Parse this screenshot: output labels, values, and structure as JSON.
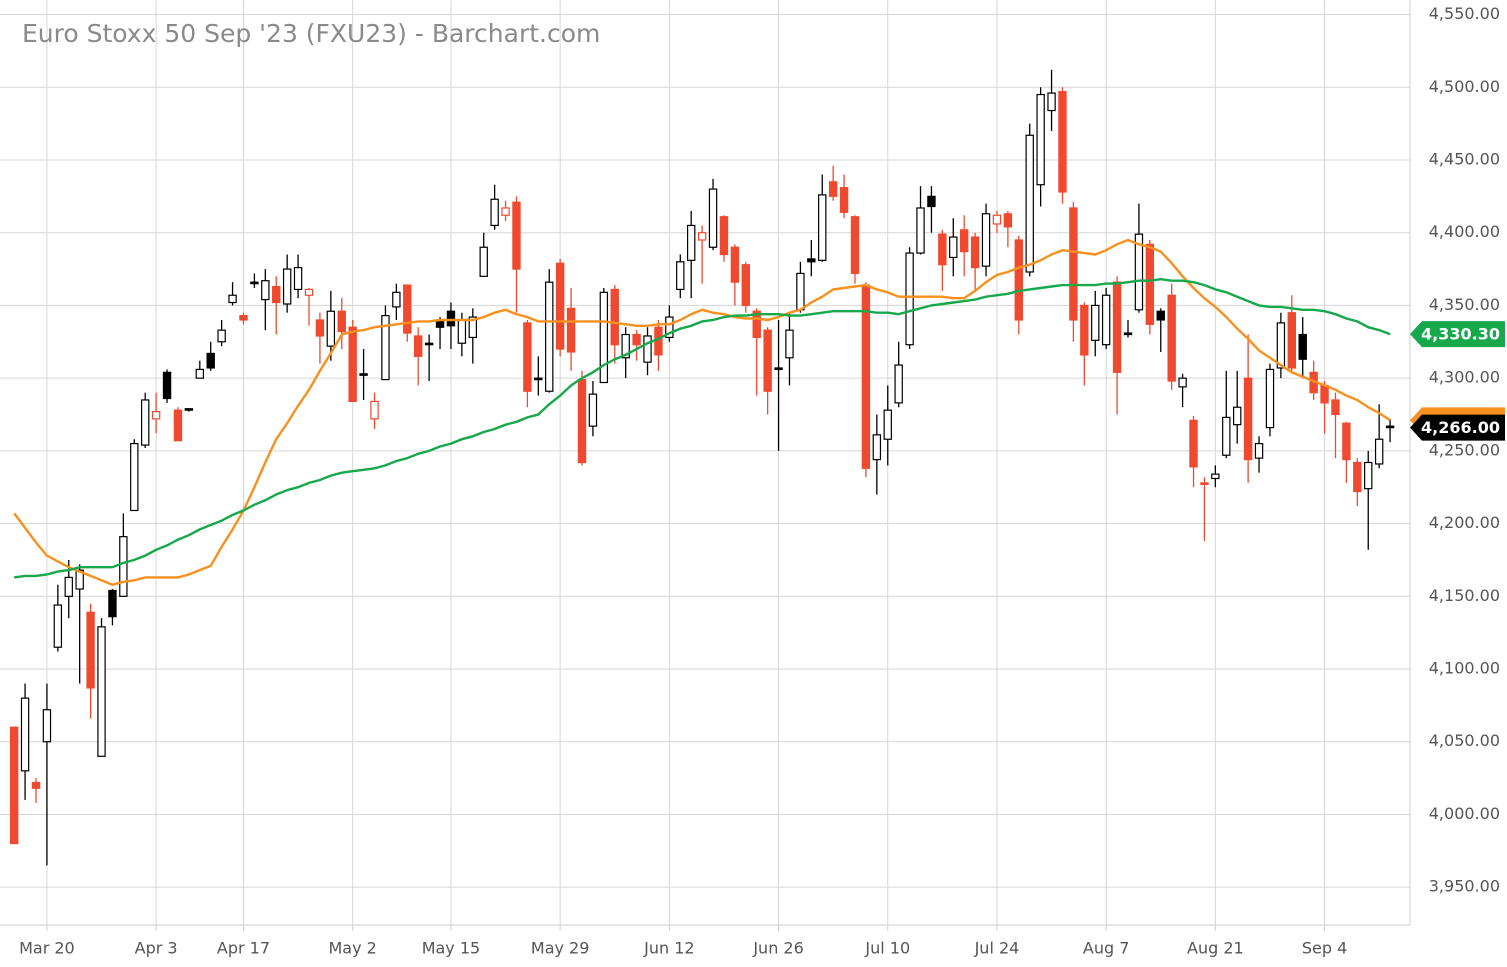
{
  "chart_data": {
    "type": "candlestick",
    "title": "Euro Stoxx 50 Sep '23 (FXU23) - Barchart.com",
    "categories": [
      null,
      null,
      null,
      "Mar 20",
      null,
      null,
      null,
      null,
      null,
      null,
      null,
      null,
      null,
      "Apr 3",
      null,
      null,
      null,
      null,
      null,
      null,
      null,
      "Apr 17",
      null,
      null,
      null,
      null,
      null,
      null,
      null,
      null,
      null,
      "May 2",
      null,
      null,
      null,
      null,
      null,
      null,
      null,
      null,
      "May 15",
      null,
      null,
      null,
      null,
      null,
      null,
      null,
      null,
      null,
      "May 29",
      null,
      null,
      null,
      null,
      null,
      null,
      null,
      null,
      null,
      "Jun 12",
      null,
      null,
      null,
      null,
      null,
      null,
      null,
      null,
      null,
      "Jun 26",
      null,
      null,
      null,
      null,
      null,
      null,
      null,
      null,
      null,
      "Jul 10",
      null,
      null,
      null,
      null,
      null,
      null,
      null,
      null,
      null,
      "Jul 24",
      null,
      null,
      null,
      null,
      null,
      null,
      null,
      null,
      null,
      "Aug 7",
      null,
      null,
      null,
      null,
      null,
      null,
      null,
      null,
      null,
      "Aug 21",
      null,
      null,
      null,
      null,
      null,
      null,
      null,
      null,
      null,
      "Sep 4",
      null,
      null,
      null,
      null,
      null,
      null
    ],
    "open": [
      4060,
      4030,
      4022,
      4050,
      4115,
      4150,
      4155,
      4139,
      4040,
      4154,
      4150,
      4209,
      4254,
      4272,
      4304,
      4278,
      4279,
      4300,
      4317,
      4325,
      4352,
      4343,
      4366,
      4354,
      4363,
      4351,
      4361,
      4357,
      4340,
      4322,
      4346,
      4335,
      4303,
      4272,
      4299,
      4349,
      4364,
      4329,
      4324,
      4340,
      4346,
      4324,
      4328,
      4370,
      4405,
      4412,
      4421,
      4338,
      4300,
      4291,
      4379,
      4348,
      4299,
      4267,
      4297,
      4361,
      4314,
      4330,
      4311,
      4335,
      4328,
      4361,
      4381,
      4395,
      4390,
      4411,
      4390,
      4378,
      4346,
      4333,
      4307,
      4314,
      4347,
      4382,
      4381,
      4435,
      4431,
      4411,
      4364,
      4244,
      4258,
      4283,
      4323,
      4386,
      4425,
      4399,
      4383,
      4402,
      4397,
      4377,
      4406,
      4413,
      4395,
      4373,
      4433,
      4484,
      4497,
      4417,
      4350,
      4326,
      4323,
      4366,
      4331,
      4347,
      4392,
      4346,
      4357,
      4294,
      4271,
      4228,
      4231,
      4247,
      4268,
      4300,
      4245,
      4266,
      4307,
      4345,
      4330,
      4304,
      4295,
      4285,
      4269,
      4242,
      4224,
      4241,
      4267
    ],
    "high": [
      4060,
      4090,
      4025,
      4090,
      4158,
      4175,
      4172,
      4145,
      4135,
      4155,
      4207,
      4258,
      4290,
      4290,
      4306,
      4280,
      4279,
      4312,
      4325,
      4340,
      4366,
      4345,
      4372,
      4375,
      4370,
      4385,
      4385,
      4362,
      4345,
      4360,
      4355,
      4340,
      4320,
      4290,
      4350,
      4365,
      4364,
      4335,
      4330,
      4342,
      4352,
      4345,
      4348,
      4400,
      4433,
      4422,
      4425,
      4340,
      4315,
      4375,
      4382,
      4362,
      4305,
      4298,
      4362,
      4364,
      4335,
      4333,
      4335,
      4340,
      4350,
      4385,
      4415,
      4405,
      4437,
      4412,
      4392,
      4380,
      4348,
      4335,
      4340,
      4345,
      4380,
      4395,
      4440,
      4446,
      4440,
      4412,
      4366,
      4275,
      4295,
      4325,
      4390,
      4432,
      4432,
      4402,
      4410,
      4412,
      4400,
      4420,
      4415,
      4415,
      4398,
      4475,
      4500,
      4512,
      4500,
      4421,
      4352,
      4360,
      4362,
      4370,
      4340,
      4420,
      4395,
      4348,
      4365,
      4303,
      4274,
      4232,
      4240,
      4305,
      4305,
      4330,
      4260,
      4310,
      4345,
      4357,
      4342,
      4312,
      4298,
      4290,
      4270,
      4245,
      4250,
      4282,
      4272
    ],
    "low": [
      3980,
      4010,
      4008,
      3965,
      4112,
      4135,
      4090,
      4066,
      4040,
      4130,
      4150,
      4209,
      4252,
      4262,
      4283,
      4257,
      4277,
      4300,
      4305,
      4322,
      4350,
      4337,
      4362,
      4333,
      4330,
      4345,
      4355,
      4336,
      4310,
      4312,
      4320,
      4284,
      4285,
      4265,
      4299,
      4340,
      4325,
      4295,
      4298,
      4320,
      4320,
      4315,
      4310,
      4370,
      4402,
      4408,
      4345,
      4280,
      4288,
      4290,
      4315,
      4305,
      4240,
      4260,
      4297,
      4310,
      4300,
      4312,
      4302,
      4305,
      4325,
      4355,
      4355,
      4365,
      4388,
      4380,
      4350,
      4345,
      4288,
      4275,
      4250,
      4295,
      4345,
      4370,
      4380,
      4422,
      4410,
      4365,
      4232,
      4220,
      4240,
      4280,
      4320,
      4385,
      4400,
      4360,
      4370,
      4370,
      4360,
      4370,
      4400,
      4390,
      4330,
      4370,
      4418,
      4470,
      4420,
      4325,
      4295,
      4315,
      4320,
      4275,
      4328,
      4345,
      4330,
      4318,
      4292,
      4280,
      4225,
      4188,
      4225,
      4245,
      4255,
      4228,
      4235,
      4260,
      4300,
      4305,
      4300,
      4285,
      4262,
      4245,
      4228,
      4212,
      4182,
      4238,
      4256
    ],
    "close": [
      3980,
      4080,
      4018,
      4072,
      4144,
      4163,
      4168,
      4087,
      4129,
      4136,
      4191,
      4255,
      4285,
      4277,
      4286,
      4257,
      4278,
      4306,
      4307,
      4333,
      4357,
      4340,
      4365,
      4367,
      4352,
      4375,
      4376,
      4361,
      4329,
      4346,
      4332,
      4284,
      4302,
      4284,
      4343,
      4359,
      4331,
      4315,
      4323,
      4335,
      4336,
      4340,
      4342,
      4390,
      4423,
      4417,
      4375,
      4291,
      4299,
      4366,
      4320,
      4318,
      4242,
      4289,
      4359,
      4323,
      4330,
      4323,
      4329,
      4316,
      4342,
      4380,
      4405,
      4400,
      4430,
      4385,
      4366,
      4350,
      4328,
      4291,
      4306,
      4333,
      4372,
      4380,
      4426,
      4425,
      4414,
      4372,
      4238,
      4261,
      4278,
      4309,
      4386,
      4417,
      4418,
      4378,
      4397,
      4387,
      4376,
      4413,
      4412,
      4404,
      4340,
      4467,
      4495,
      4496,
      4428,
      4340,
      4316,
      4350,
      4357,
      4304,
      4330,
      4399,
      4337,
      4340,
      4298,
      4300,
      4239,
      4227,
      4234,
      4273,
      4280,
      4244,
      4255,
      4306,
      4338,
      4307,
      4313,
      4290,
      4283,
      4275,
      4244,
      4222,
      4242,
      4258,
      4266
    ],
    "up_color": "#000000",
    "down_color": "#ef4a2f",
    "overlays": [
      {
        "color": "#f7901e",
        "values": [
          4207,
          4197,
          4187,
          4178,
          4174,
          4170,
          4167,
          4164,
          4161,
          4158,
          4160,
          4161,
          4163,
          4163,
          4163,
          4163,
          4165,
          4168,
          4171,
          4184,
          4196,
          4209,
          4225,
          4242,
          4258,
          4269,
          4281,
          4292,
          4305,
          4317,
          4330,
          4332,
          4333,
          4335,
          4336,
          4337,
          4338,
          4339,
          4339,
          4340,
          4340,
          4340,
          4340,
          4342,
          4345,
          4347,
          4344,
          4342,
          4339,
          4339,
          4339,
          4339,
          4339,
          4339,
          4339,
          4338,
          4337,
          4336,
          4336,
          4337,
          4337,
          4340,
          4344,
          4347,
          4345,
          4344,
          4342,
          4341,
          4341,
          4340,
          4342,
          4345,
          4347,
          4352,
          4356,
          4361,
          4362,
          4363,
          4364,
          4361,
          4359,
          4356,
          4356,
          4356,
          4356,
          4356,
          4355,
          4355,
          4360,
          4366,
          4371,
          4373,
          4376,
          4378,
          4381,
          4385,
          4388,
          4387,
          4386,
          4385,
          4388,
          4392,
          4395,
          4392,
          4390,
          4387,
          4379,
          4370,
          4362,
          4355,
          4349,
          4342,
          4334,
          4327,
          4319,
          4314,
          4309,
          4304,
          4301,
          4298,
          4295,
          4292,
          4288,
          4285,
          4280,
          4276,
          4271
        ]
      },
      {
        "color": "#17a84b",
        "values": [
          4163,
          4164,
          4164,
          4165,
          4167,
          4168,
          4170,
          4170,
          4170,
          4170,
          4173,
          4175,
          4178,
          4182,
          4185,
          4189,
          4192,
          4196,
          4199,
          4202,
          4206,
          4209,
          4213,
          4216,
          4220,
          4223,
          4225,
          4228,
          4230,
          4233,
          4235,
          4236,
          4237,
          4238,
          4240,
          4243,
          4245,
          4248,
          4250,
          4253,
          4255,
          4258,
          4260,
          4263,
          4265,
          4268,
          4270,
          4273,
          4275,
          4282,
          4288,
          4295,
          4300,
          4304,
          4309,
          4313,
          4316,
          4320,
          4324,
          4327,
          4331,
          4334,
          4336,
          4339,
          4340,
          4342,
          4343,
          4343,
          4344,
          4344,
          4344,
          4343,
          4343,
          4344,
          4345,
          4346,
          4346,
          4346,
          4346,
          4345,
          4345,
          4344,
          4346,
          4348,
          4350,
          4351,
          4352,
          4353,
          4354,
          4356,
          4357,
          4358,
          4360,
          4361,
          4362,
          4363,
          4364,
          4364,
          4364,
          4364,
          4365,
          4365,
          4366,
          4367,
          4367,
          4368,
          4367,
          4367,
          4366,
          4364,
          4361,
          4359,
          4356,
          4353,
          4350,
          4349,
          4349,
          4348,
          4347,
          4347,
          4346,
          4344,
          4341,
          4339,
          4335,
          4333,
          4330.3
        ]
      }
    ],
    "price_labels": [
      {
        "value": 4330.3,
        "label": "4,330.30",
        "color": "#17a84b"
      },
      {
        "value": 4266,
        "label": "4,266.00",
        "color": "#000000"
      }
    ],
    "ylim": [
      3924,
      4560
    ],
    "yticks": [
      {
        "value": 3950,
        "label": "3,950.00"
      },
      {
        "value": 4000,
        "label": "4,000.00"
      },
      {
        "value": 4050,
        "label": "4,050.00"
      },
      {
        "value": 4100,
        "label": "4,100.00"
      },
      {
        "value": 4150,
        "label": "4,150.00"
      },
      {
        "value": 4200,
        "label": "4,200.00"
      },
      {
        "value": 4250,
        "label": "4,250.00"
      },
      {
        "value": 4300,
        "label": "4,300.00"
      },
      {
        "value": 4350,
        "label": "4,350.00"
      },
      {
        "value": 4400,
        "label": "4,400.00"
      },
      {
        "value": 4450,
        "label": "4,450.00"
      },
      {
        "value": 4500,
        "label": "4,500.00"
      },
      {
        "value": 4550,
        "label": "4,550.00"
      }
    ],
    "grid": true
  }
}
